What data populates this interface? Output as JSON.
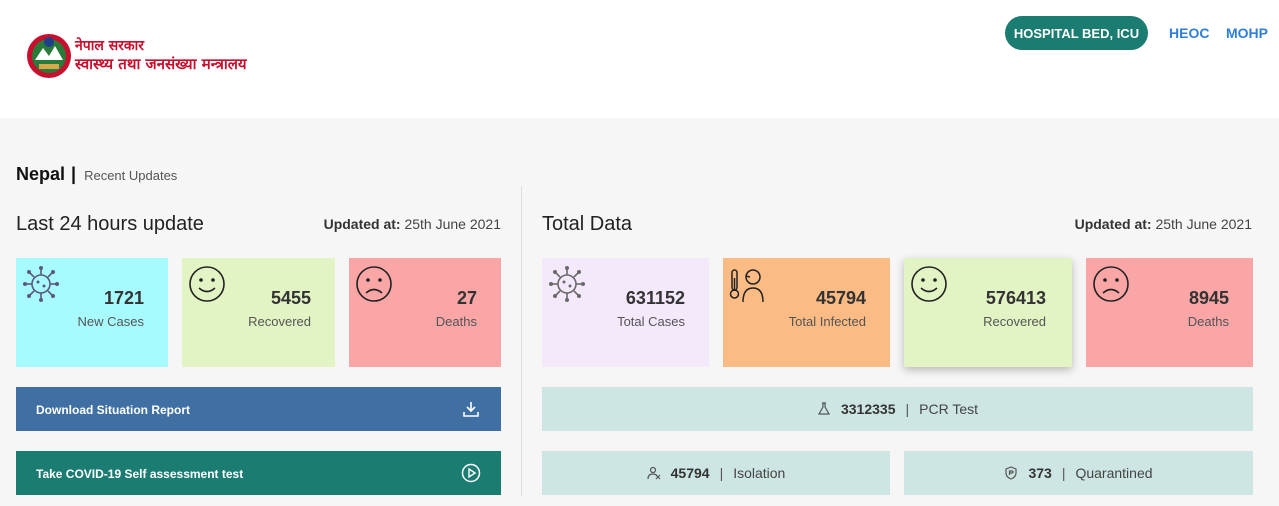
{
  "header": {
    "logo_line1": "नेपाल सरकार",
    "logo_line2": "स्वास्थ्य तथा जनसंख्या मन्त्रालय",
    "nav": {
      "hospital_bed": "HOSPITAL BED, ICU",
      "heoc": "HEOC",
      "mohp": "MOHP"
    }
  },
  "page": {
    "country": "Nepal",
    "separator": "|",
    "subtitle": "Recent Updates"
  },
  "last24": {
    "title": "Last 24 hours update",
    "updated_label": "Updated at:",
    "updated_value": "25th June 2021",
    "cards": [
      {
        "value": "1721",
        "label": "New Cases",
        "color": "#a7fbff",
        "icon": "virus-icon"
      },
      {
        "value": "5455",
        "label": "Recovered",
        "color": "#e2f3c4",
        "icon": "smile-icon"
      },
      {
        "value": "27",
        "label": "Deaths",
        "color": "#faa6a7",
        "icon": "sad-icon"
      }
    ],
    "download_label": "Download Situation Report",
    "selftest_label": "Take COVID-19 Self assessment test"
  },
  "total": {
    "title": "Total Data",
    "updated_label": "Updated at:",
    "updated_value": "25th June 2021",
    "cards": [
      {
        "value": "631152",
        "label": "Total Cases",
        "color": "#f4e8fb",
        "icon": "virus-icon"
      },
      {
        "value": "45794",
        "label": "Total Infected",
        "color": "#fbbb84",
        "icon": "fever-icon"
      },
      {
        "value": "576413",
        "label": "Recovered",
        "color": "#e2f3c4",
        "icon": "smile-icon"
      },
      {
        "value": "8945",
        "label": "Deaths",
        "color": "#faa6a7",
        "icon": "sad-icon"
      }
    ],
    "pcr": {
      "value": "3312335",
      "separator": "|",
      "label": "PCR Test"
    },
    "isolation": {
      "value": "45794",
      "separator": "|",
      "label": "Isolation"
    },
    "quarantined": {
      "value": "373",
      "separator": "|",
      "label": "Quarantined"
    }
  },
  "colors": {
    "teal": "#1b7c72",
    "blue_button": "#3f6fa3",
    "link": "#2f7fd8",
    "stat_bar": "#cde6e3"
  }
}
